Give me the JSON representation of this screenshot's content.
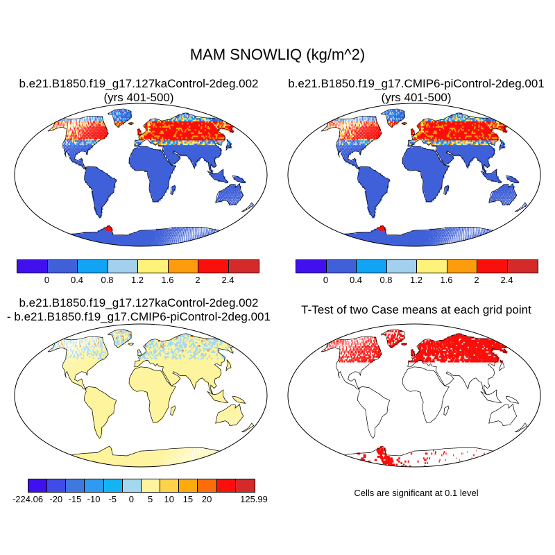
{
  "title": "MAM SNOWLIQ (kg/m^2)",
  "panels": [
    {
      "id": "case1",
      "title_lines": [
        "b.e21.B1850.f19_g17.127kaControl-2deg.002",
        "(yrs 401-500)"
      ]
    },
    {
      "id": "case2",
      "title_lines": [
        "b.e21.B1850.f19_g17.CMIP6-piControl-2deg.001",
        "(yrs 401-500)"
      ]
    },
    {
      "id": "diff",
      "title_lines": [
        "b.e21.B1850.f19_g17.127kaControl-2deg.002",
        "- b.e21.B1850.f19_g17.CMIP6-piControl-2deg.001"
      ]
    },
    {
      "id": "ttest",
      "title_lines": [
        "T-Test of two Case means at each grid point"
      ]
    }
  ],
  "colorbar_main": {
    "colors": [
      "#4010ee",
      "#3f60d8",
      "#12a4f4",
      "#a3d0ed",
      "#fef27a",
      "#fd9c0d",
      "#f90f0b",
      "#d42a2a"
    ],
    "labels": [
      "0",
      "0.4",
      "0.8",
      "1.2",
      "1.6",
      "2",
      "2.4"
    ]
  },
  "colorbar_diff": {
    "colors": [
      "#4010ee",
      "#3f4ce8",
      "#3f78df",
      "#2e9af2",
      "#12b4f4",
      "#a3d8f0",
      "#fef49e",
      "#fed24a",
      "#fdaa0d",
      "#fb6c0a",
      "#f90f0b",
      "#d42a2a"
    ],
    "labels": [
      "-224.06",
      "-20",
      "-15",
      "-10",
      "-5",
      "0",
      "5",
      "10",
      "15",
      "20",
      "125.99"
    ]
  },
  "significance_note": "Cells are significant at 0.1 level",
  "colors": {
    "ocean": "#ffffff",
    "land_mean": "#3f60d8",
    "land_diff": "#fef49e",
    "significant": "#f90f0b"
  }
}
